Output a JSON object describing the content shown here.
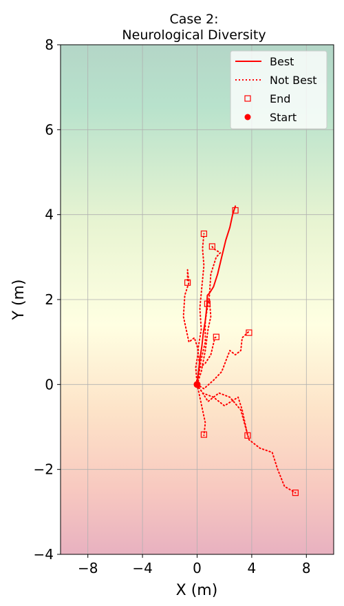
{
  "chart_data": {
    "type": "line",
    "title": "Case 2:",
    "subtitle": "Neurological Diversity",
    "xlabel": "X (m)",
    "ylabel": "Y (m)",
    "xlim": [
      -10,
      10
    ],
    "ylim": [
      -4,
      8
    ],
    "xticks": [
      -8,
      -4,
      0,
      4,
      8
    ],
    "yticks": [
      -4,
      -2,
      0,
      2,
      4,
      6,
      8
    ],
    "xtick_labels": [
      "−8",
      "−4",
      "0",
      "4",
      "8"
    ],
    "ytick_labels": [
      "−4",
      "−2",
      "0",
      "2",
      "4",
      "6",
      "8"
    ],
    "grid": true,
    "background_gradient": {
      "direction": "vertical",
      "colors": {
        "top": "#b4d6c7",
        "upper": "#b8e2cc",
        "upper_mid": "#e8f4d2",
        "middle": "#ffffe2",
        "lower_mid": "#fde3c8",
        "lower": "#f8c9c0",
        "bottom": "#e8b1c0"
      }
    },
    "legend": {
      "position": "top-right",
      "entries": [
        {
          "label": "Best",
          "style": "solid-line"
        },
        {
          "label": "Not Best",
          "style": "dotted-line"
        },
        {
          "label": "End",
          "style": "open-square"
        },
        {
          "label": "Start",
          "style": "filled-circle"
        }
      ]
    },
    "series_color": "#ff0000",
    "start_point": {
      "x": 0,
      "y": 0
    },
    "series": [
      {
        "kind": "best",
        "points": [
          [
            0,
            0
          ],
          [
            0.1,
            0.3
          ],
          [
            0.2,
            0.6
          ],
          [
            0.35,
            0.9
          ],
          [
            0.45,
            1.2
          ],
          [
            0.6,
            1.5
          ],
          [
            0.7,
            1.8
          ],
          [
            0.75,
            2.1
          ],
          [
            0.9,
            2.15
          ],
          [
            1.2,
            2.3
          ],
          [
            1.5,
            2.6
          ],
          [
            1.8,
            3.0
          ],
          [
            2.1,
            3.4
          ],
          [
            2.4,
            3.7
          ],
          [
            2.6,
            4.0
          ],
          [
            2.8,
            4.2
          ]
        ]
      },
      {
        "kind": "not_best",
        "points": [
          [
            0,
            0
          ],
          [
            -0.1,
            0.4
          ],
          [
            0.1,
            0.8
          ],
          [
            -0.2,
            1.1
          ],
          [
            -0.6,
            1.0
          ],
          [
            -1.0,
            1.6
          ],
          [
            -0.9,
            2.1
          ],
          [
            -0.6,
            2.4
          ],
          [
            -0.7,
            2.7
          ],
          [
            -0.7,
            2.4
          ]
        ]
      },
      {
        "kind": "not_best",
        "points": [
          [
            0,
            0
          ],
          [
            0.2,
            0.4
          ],
          [
            0.05,
            0.8
          ],
          [
            0.3,
            1.3
          ],
          [
            0.2,
            1.8
          ],
          [
            0.35,
            2.3
          ],
          [
            0.5,
            2.8
          ],
          [
            0.4,
            3.2
          ],
          [
            0.5,
            3.55
          ]
        ]
      },
      {
        "kind": "not_best",
        "points": [
          [
            0,
            0
          ],
          [
            0.3,
            0.3
          ],
          [
            0.6,
            0.8
          ],
          [
            0.8,
            1.3
          ],
          [
            1.0,
            1.6
          ],
          [
            0.9,
            2.0
          ],
          [
            0.75,
            1.9
          ]
        ]
      },
      {
        "kind": "not_best",
        "points": [
          [
            0,
            0
          ],
          [
            0.3,
            0.6
          ],
          [
            0.6,
            1.0
          ],
          [
            0.6,
            1.5
          ],
          [
            0.9,
            2.1
          ],
          [
            1.0,
            2.6
          ],
          [
            1.4,
            3.0
          ],
          [
            1.7,
            3.1
          ],
          [
            1.2,
            3.2
          ],
          [
            1.1,
            3.25
          ]
        ]
      },
      {
        "kind": "not_best",
        "points": [
          [
            0,
            0
          ],
          [
            0.2,
            0.4
          ],
          [
            0.6,
            0.5
          ],
          [
            1.0,
            0.7
          ],
          [
            1.3,
            1.1
          ],
          [
            1.4,
            1.12
          ]
        ]
      },
      {
        "kind": "not_best",
        "points": [
          [
            0,
            0
          ],
          [
            0.5,
            -0.1
          ],
          [
            1.2,
            0.1
          ],
          [
            1.8,
            0.3
          ],
          [
            2.4,
            0.8
          ],
          [
            2.8,
            0.7
          ],
          [
            3.2,
            0.8
          ],
          [
            3.3,
            1.1
          ],
          [
            3.8,
            1.25
          ]
        ]
      },
      {
        "kind": "not_best",
        "points": [
          [
            0,
            0
          ],
          [
            0.4,
            -0.2
          ],
          [
            1.2,
            -0.3
          ],
          [
            2.0,
            -0.5
          ],
          [
            2.5,
            -0.4
          ],
          [
            3.0,
            -0.3
          ],
          [
            3.3,
            -0.6
          ],
          [
            3.5,
            -0.9
          ],
          [
            3.7,
            -1.2
          ]
        ]
      },
      {
        "kind": "not_best",
        "points": [
          [
            0,
            0
          ],
          [
            0.2,
            -0.3
          ],
          [
            0.4,
            -0.6
          ],
          [
            0.6,
            -0.9
          ],
          [
            0.5,
            -1.2
          ]
        ]
      },
      {
        "kind": "not_best",
        "points": [
          [
            0,
            0
          ],
          [
            0.8,
            -0.4
          ],
          [
            1.6,
            -0.2
          ],
          [
            2.4,
            -0.3
          ],
          [
            3.2,
            -0.6
          ],
          [
            3.8,
            -1.3
          ],
          [
            4.6,
            -1.5
          ],
          [
            5.5,
            -1.6
          ],
          [
            5.9,
            -2.0
          ],
          [
            6.4,
            -2.4
          ],
          [
            7.2,
            -2.55
          ]
        ]
      }
    ],
    "end_points": [
      {
        "x": 2.8,
        "y": 4.1
      },
      {
        "x": 0.5,
        "y": 3.55
      },
      {
        "x": 1.1,
        "y": 3.25
      },
      {
        "x": -0.7,
        "y": 2.4
      },
      {
        "x": 0.75,
        "y": 1.9
      },
      {
        "x": 3.8,
        "y": 1.22
      },
      {
        "x": 1.4,
        "y": 1.12
      },
      {
        "x": 0.5,
        "y": -1.18
      },
      {
        "x": 3.7,
        "y": -1.2
      },
      {
        "x": 7.2,
        "y": -2.55
      }
    ]
  }
}
